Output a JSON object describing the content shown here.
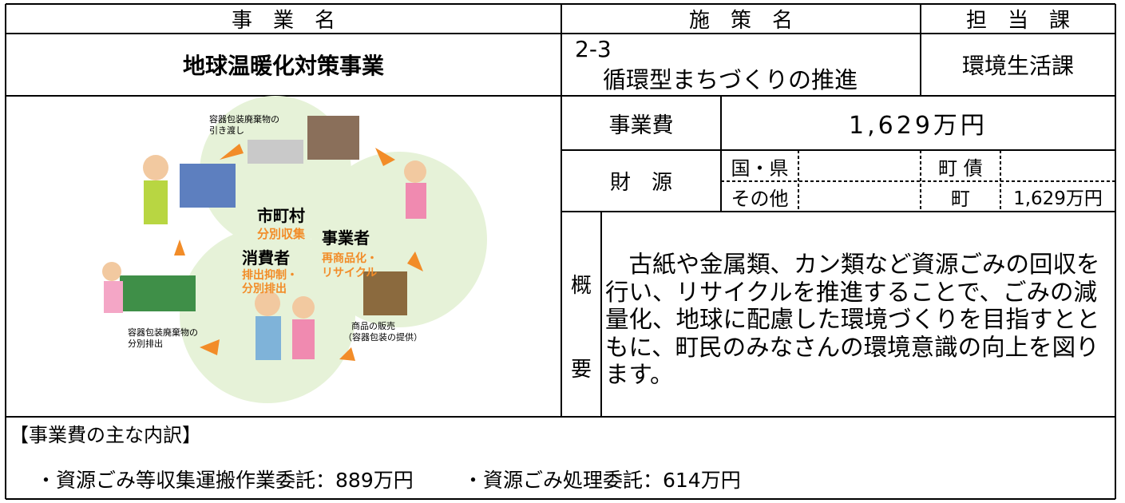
{
  "header": {
    "business_name_label": "事　業　名",
    "policy_name_label": "施　策　名",
    "department_label": "担　当　課"
  },
  "business": {
    "name": "地球温暖化対策事業",
    "policy_number": "2-3",
    "policy_name": "循環型まちづくりの推進",
    "department": "環境生活課"
  },
  "cost": {
    "label": "事業費",
    "amount": "1,629万円"
  },
  "funding": {
    "label": "財　源",
    "national_prefectural": "国・県",
    "town_bond": "町 債",
    "other": "その他",
    "town": "町",
    "town_amount": "1,629万円"
  },
  "summary": {
    "label_top": "概",
    "label_bottom": "要",
    "text": "　古紙や金属類、カン類など資源ごみの回収を行い、リサイクルを推進することで、ごみの減量化、地球に配慮した環境づくりを目指すとともに、町民のみなさんの環境意識の向上を図ります。"
  },
  "illustration": {
    "handover": [
      "容器包装廃棄物の",
      "引き渡し"
    ],
    "municipality": "市町村",
    "separate_collection": "分別収集",
    "business_operator": "事業者",
    "recycling": [
      "再商品化・",
      "リサイクル"
    ],
    "consumer": "消費者",
    "consumer_action": [
      "排出抑制・",
      "分別排出"
    ],
    "sorted_disposal": [
      "容器包装廃棄物の",
      "分別排出"
    ],
    "sales": [
      "商品の販売",
      "（容器包装の提供）"
    ]
  },
  "breakdown": {
    "title": "【事業費の主な内訳】",
    "items": [
      "・資源ごみ等収集運搬作業委託：889万円",
      "・資源ごみ処理委託：614万円"
    ]
  }
}
